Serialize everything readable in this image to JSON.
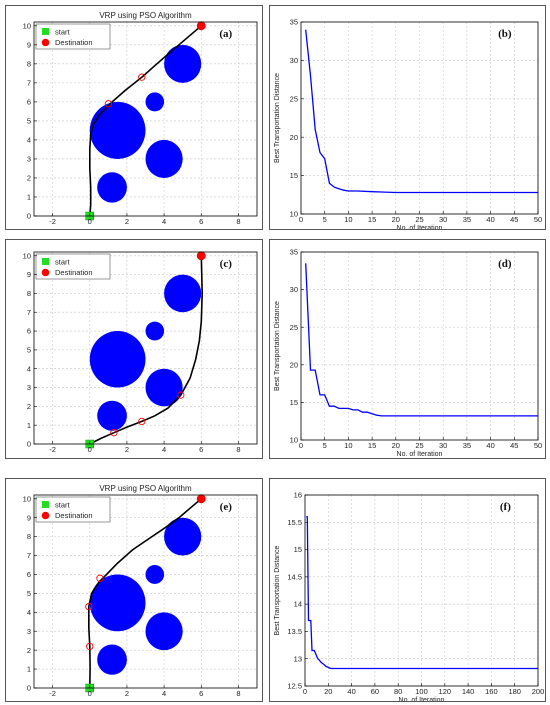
{
  "chart_data": [
    {
      "id": "a",
      "type": "scatter",
      "panel_label": "(a)",
      "title": "VRP using PSO Algorithm",
      "xlim": [
        -3,
        9
      ],
      "ylim": [
        0,
        10.2
      ],
      "xticks": [
        -2,
        0,
        2,
        4,
        6,
        8
      ],
      "yticks": [
        0,
        1,
        2,
        3,
        4,
        5,
        6,
        7,
        8,
        9,
        10
      ],
      "grid": true,
      "legend": {
        "position": "top-left",
        "entries": [
          "start",
          "Destination"
        ]
      },
      "start": [
        0,
        0
      ],
      "destination": [
        6,
        10
      ],
      "obstacles": [
        {
          "x": 1.5,
          "y": 4.5,
          "r": 1.5
        },
        {
          "x": 4,
          "y": 3,
          "r": 1
        },
        {
          "x": 5,
          "y": 8,
          "r": 1
        },
        {
          "x": 1.2,
          "y": 1.5,
          "r": 0.8
        },
        {
          "x": 3.5,
          "y": 6,
          "r": 0.5
        }
      ],
      "path": [
        [
          0,
          0
        ],
        [
          0.05,
          0.6
        ],
        [
          0.05,
          1.5
        ],
        [
          0,
          2.5
        ],
        [
          0,
          3.5
        ],
        [
          0.05,
          4.3
        ],
        [
          0.2,
          4.8
        ],
        [
          0.5,
          5.3
        ],
        [
          0.9,
          5.7
        ],
        [
          1.2,
          6.0
        ],
        [
          1.9,
          6.6
        ],
        [
          2.8,
          7.3
        ],
        [
          3.5,
          7.9
        ],
        [
          4.2,
          8.5
        ],
        [
          4.8,
          9.0
        ],
        [
          5.4,
          9.5
        ],
        [
          6,
          10
        ]
      ],
      "waypoints": [
        [
          1,
          5.9
        ],
        [
          2.8,
          7.3
        ]
      ]
    },
    {
      "id": "b",
      "type": "line",
      "panel_label": "(b)",
      "xlabel": "No. of Iteration",
      "ylabel": "Best Transportation Distance",
      "xlim": [
        0,
        50
      ],
      "ylim": [
        10,
        35
      ],
      "xticks": [
        0,
        5,
        10,
        15,
        20,
        25,
        30,
        35,
        40,
        45,
        50
      ],
      "yticks": [
        10,
        15,
        20,
        25,
        30,
        35
      ],
      "grid": true,
      "x": [
        1,
        2,
        3,
        4,
        5,
        6,
        7,
        8,
        9,
        10,
        12,
        15,
        20,
        30,
        40,
        50
      ],
      "y": [
        34,
        28,
        21,
        18,
        17.2,
        14,
        13.5,
        13.3,
        13.1,
        13.0,
        13.0,
        12.9,
        12.8,
        12.8,
        12.8,
        12.8
      ]
    },
    {
      "id": "c",
      "type": "scatter",
      "panel_label": "(c)",
      "title": "",
      "xlim": [
        -3,
        9
      ],
      "ylim": [
        0,
        10.2
      ],
      "xticks": [
        -2,
        0,
        2,
        4,
        6,
        8
      ],
      "yticks": [
        0,
        1,
        2,
        3,
        4,
        5,
        6,
        7,
        8,
        9,
        10
      ],
      "grid": true,
      "legend": {
        "position": "top-left",
        "entries": [
          "start",
          "Destination"
        ]
      },
      "start": [
        0,
        0
      ],
      "destination": [
        6,
        10
      ],
      "obstacles": [
        {
          "x": 1.5,
          "y": 4.5,
          "r": 1.5
        },
        {
          "x": 4,
          "y": 3,
          "r": 1
        },
        {
          "x": 5,
          "y": 8,
          "r": 1
        },
        {
          "x": 1.2,
          "y": 1.5,
          "r": 0.8
        },
        {
          "x": 3.5,
          "y": 6,
          "r": 0.5
        }
      ],
      "path": [
        [
          0,
          0
        ],
        [
          0.6,
          0.3
        ],
        [
          1.3,
          0.6
        ],
        [
          2,
          0.9
        ],
        [
          2.8,
          1.2
        ],
        [
          3.5,
          1.5
        ],
        [
          4.2,
          1.9
        ],
        [
          4.9,
          2.6
        ],
        [
          5.4,
          3.5
        ],
        [
          5.7,
          4.5
        ],
        [
          5.9,
          5.5
        ],
        [
          6,
          6.5
        ],
        [
          6.05,
          8
        ],
        [
          6,
          10
        ]
      ],
      "waypoints": [
        [
          1.3,
          0.6
        ],
        [
          2.8,
          1.2
        ],
        [
          4.9,
          2.6
        ]
      ]
    },
    {
      "id": "d",
      "type": "line",
      "panel_label": "(d)",
      "xlabel": "No. of Iteration",
      "ylabel": "Best Transportation Distance",
      "xlim": [
        0,
        50
      ],
      "ylim": [
        10,
        35
      ],
      "xticks": [
        0,
        5,
        10,
        15,
        20,
        25,
        30,
        35,
        40,
        45,
        50
      ],
      "yticks": [
        10,
        15,
        20,
        25,
        30,
        35
      ],
      "grid": true,
      "x": [
        1,
        2,
        3,
        4,
        5,
        6,
        7,
        8,
        9,
        10,
        11,
        12,
        13,
        14,
        15,
        16,
        17,
        18,
        20,
        30,
        40,
        50
      ],
      "y": [
        33.5,
        19.3,
        19.3,
        16,
        16,
        14.5,
        14.5,
        14.2,
        14.2,
        14.2,
        14.0,
        14.0,
        13.7,
        13.7,
        13.5,
        13.3,
        13.2,
        13.2,
        13.2,
        13.2,
        13.2,
        13.2
      ]
    },
    {
      "id": "e",
      "type": "scatter",
      "panel_label": "(e)",
      "title": "VRP using PSO Algorithm",
      "xlim": [
        -3,
        9
      ],
      "ylim": [
        0,
        10.2
      ],
      "xticks": [
        -2,
        0,
        2,
        4,
        6,
        8
      ],
      "yticks": [
        0,
        1,
        2,
        3,
        4,
        5,
        6,
        7,
        8,
        9,
        10
      ],
      "grid": true,
      "legend": {
        "position": "top-left",
        "entries": [
          "start",
          "Destination"
        ]
      },
      "start": [
        0,
        0
      ],
      "destination": [
        6,
        10
      ],
      "obstacles": [
        {
          "x": 1.5,
          "y": 4.5,
          "r": 1.5
        },
        {
          "x": 4,
          "y": 3,
          "r": 1
        },
        {
          "x": 5,
          "y": 8,
          "r": 1
        },
        {
          "x": 1.2,
          "y": 1.5,
          "r": 0.8
        },
        {
          "x": 3.5,
          "y": 6,
          "r": 0.5
        }
      ],
      "path": [
        [
          0,
          0
        ],
        [
          0.02,
          1.1
        ],
        [
          0,
          2.2
        ],
        [
          -0.05,
          3.2
        ],
        [
          -0.05,
          4.3
        ],
        [
          0.1,
          5.0
        ],
        [
          0.5,
          5.6
        ],
        [
          0.9,
          6.0
        ],
        [
          1.5,
          6.6
        ],
        [
          2.3,
          7.3
        ],
        [
          3.2,
          7.9
        ],
        [
          4.1,
          8.5
        ],
        [
          4.8,
          9.0
        ],
        [
          5.4,
          9.5
        ],
        [
          6,
          10
        ]
      ],
      "waypoints": [
        [
          0,
          2.2
        ],
        [
          -0.05,
          4.3
        ],
        [
          0.55,
          5.8
        ]
      ]
    },
    {
      "id": "f",
      "type": "line",
      "panel_label": "(f)",
      "xlabel": "No. of Iteration",
      "ylabel": "Best Transportation Distance",
      "xlim": [
        0,
        200
      ],
      "ylim": [
        12.5,
        16
      ],
      "xticks": [
        0,
        20,
        40,
        60,
        80,
        100,
        120,
        140,
        160,
        180,
        200
      ],
      "yticks": [
        12.5,
        13,
        13.5,
        14,
        14.5,
        15,
        15.5,
        16
      ],
      "ytick_labels": [
        "12.5",
        "13",
        "13.5",
        "14",
        "14.5",
        "15",
        "15.5",
        "16"
      ],
      "grid": true,
      "x": [
        1,
        2,
        3,
        4,
        5,
        6,
        7,
        8,
        9,
        10,
        11,
        12,
        14,
        16,
        18,
        20,
        22,
        25,
        30,
        40,
        60,
        100,
        150,
        200
      ],
      "y": [
        15.6,
        15.6,
        13.7,
        13.7,
        13.7,
        13.15,
        13.15,
        13.15,
        13.1,
        13.05,
        13.0,
        12.98,
        12.93,
        12.9,
        12.86,
        12.84,
        12.82,
        12.82,
        12.82,
        12.82,
        12.82,
        12.82,
        12.82,
        12.82
      ]
    }
  ],
  "colors": {
    "obstacle": "#0000ff",
    "path": "#000000",
    "start": "#22dd22",
    "destination": "#ff0000",
    "waypoint": "#ff0000",
    "convergence_line": "#0000ff",
    "grid": "#c8c8c8"
  }
}
